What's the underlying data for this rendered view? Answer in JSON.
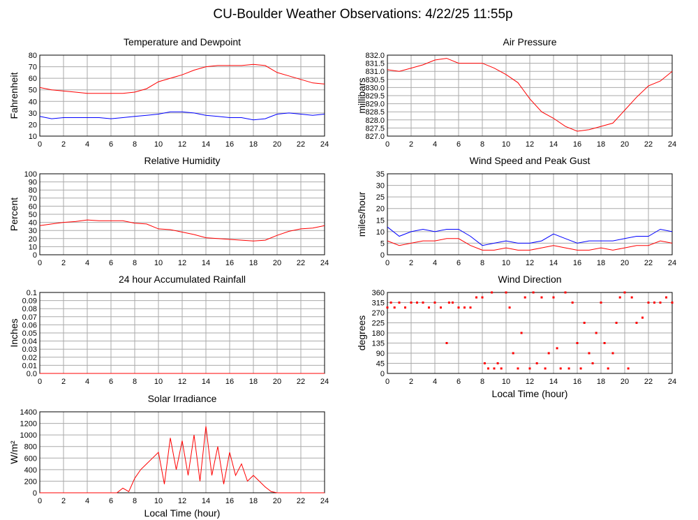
{
  "title": "CU-Boulder Weather Observations: 4/22/25 11:55p",
  "chart_data": [
    {
      "type": "line",
      "title": "Temperature and Dewpoint",
      "ylabel": "Fahrenheit",
      "x": [
        0,
        1,
        2,
        3,
        4,
        5,
        6,
        7,
        8,
        9,
        10,
        11,
        12,
        13,
        14,
        15,
        16,
        17,
        18,
        19,
        20,
        21,
        22,
        23,
        24
      ],
      "series": [
        {
          "color": "#ff0000",
          "values": [
            52,
            50,
            49,
            48,
            47,
            47,
            47,
            47,
            48,
            51,
            57,
            60,
            63,
            67,
            70,
            71,
            71,
            71,
            72,
            71,
            65,
            62,
            59,
            56,
            55
          ]
        },
        {
          "color": "#0000ff",
          "values": [
            27,
            25,
            26,
            26,
            26,
            26,
            25,
            26,
            27,
            28,
            29,
            31,
            31,
            30,
            28,
            27,
            26,
            26,
            24,
            25,
            29,
            30,
            29,
            28,
            29
          ]
        }
      ],
      "xlim": [
        0,
        24
      ],
      "xticks": [
        0,
        2,
        4,
        6,
        8,
        10,
        12,
        14,
        16,
        18,
        20,
        22,
        24
      ],
      "ylim": [
        10,
        80
      ],
      "yticks": [
        10,
        20,
        30,
        40,
        50,
        60,
        70,
        80
      ],
      "grid": true
    },
    {
      "type": "line",
      "title": "Air Pressure",
      "ylabel": "millibars",
      "x": [
        0,
        1,
        2,
        3,
        4,
        5,
        6,
        7,
        8,
        9,
        10,
        11,
        12,
        13,
        14,
        15,
        16,
        17,
        18,
        19,
        20,
        21,
        22,
        23,
        24
      ],
      "series": [
        {
          "color": "#ff0000",
          "values": [
            831.1,
            831.0,
            831.2,
            831.4,
            831.7,
            831.8,
            831.5,
            831.5,
            831.5,
            831.2,
            830.8,
            830.3,
            829.3,
            828.5,
            828.1,
            827.6,
            827.3,
            827.4,
            827.6,
            827.8,
            828.6,
            829.4,
            830.1,
            830.4,
            831.0
          ]
        }
      ],
      "xlim": [
        0,
        24
      ],
      "xticks": [
        0,
        2,
        4,
        6,
        8,
        10,
        12,
        14,
        16,
        18,
        20,
        22,
        24
      ],
      "ylim": [
        827,
        832
      ],
      "yticks": [
        {
          "value": 827,
          "label": "827.0"
        },
        827.5,
        {
          "value": 828,
          "label": "828.0"
        },
        828.5,
        {
          "value": 829,
          "label": "829.0"
        },
        829.5,
        {
          "value": 830,
          "label": "830.0"
        },
        830.5,
        {
          "value": 831,
          "label": "831.0"
        },
        831.5,
        {
          "value": 832,
          "label": "832.0"
        }
      ],
      "grid": true
    },
    {
      "type": "line",
      "title": "Relative Humidity",
      "ylabel": "Percent",
      "x": [
        0,
        1,
        2,
        3,
        4,
        5,
        6,
        7,
        8,
        9,
        10,
        11,
        12,
        13,
        14,
        15,
        16,
        17,
        18,
        19,
        20,
        21,
        22,
        23,
        24
      ],
      "series": [
        {
          "color": "#ff0000",
          "values": [
            36,
            38,
            40,
            41,
            43,
            42,
            42,
            42,
            39,
            38,
            32,
            31,
            28,
            25,
            21,
            20,
            19,
            18,
            17,
            18,
            24,
            29,
            32,
            33,
            36
          ]
        }
      ],
      "xlim": [
        0,
        24
      ],
      "xticks": [
        0,
        2,
        4,
        6,
        8,
        10,
        12,
        14,
        16,
        18,
        20,
        22,
        24
      ],
      "ylim": [
        0,
        100
      ],
      "yticks": [
        0,
        10,
        20,
        30,
        40,
        50,
        60,
        70,
        80,
        90,
        100
      ],
      "grid": true
    },
    {
      "type": "line",
      "title": "Wind Speed and Peak Gust",
      "ylabel": "miles/hour",
      "x": [
        0,
        1,
        2,
        3,
        4,
        5,
        6,
        7,
        8,
        9,
        10,
        11,
        12,
        13,
        14,
        15,
        16,
        17,
        18,
        19,
        20,
        21,
        22,
        23,
        24
      ],
      "series": [
        {
          "color": "#0000ff",
          "values": [
            12,
            8,
            10,
            11,
            10,
            11,
            11,
            8,
            4,
            5,
            6,
            5,
            5,
            6,
            9,
            7,
            5,
            6,
            6,
            6,
            7,
            8,
            8,
            11,
            10
          ]
        },
        {
          "color": "#ff0000",
          "values": [
            6,
            4,
            5,
            6,
            6,
            7,
            7,
            4,
            2,
            2,
            3,
            2,
            2,
            3,
            4,
            3,
            2,
            2,
            3,
            2,
            3,
            4,
            4,
            6,
            5
          ]
        }
      ],
      "xlim": [
        0,
        24
      ],
      "xticks": [
        0,
        2,
        4,
        6,
        8,
        10,
        12,
        14,
        16,
        18,
        20,
        22,
        24
      ],
      "ylim": [
        0,
        35
      ],
      "yticks": [
        0,
        5,
        10,
        15,
        20,
        25,
        30,
        35
      ],
      "grid": true
    },
    {
      "type": "line",
      "title": "24 hour Accumulated Rainfall",
      "ylabel": "Inches",
      "x": [
        0,
        24
      ],
      "series": [
        {
          "color": "#ff0000",
          "values": [
            0,
            0
          ]
        }
      ],
      "xlim": [
        0,
        24
      ],
      "xticks": [
        0,
        2,
        4,
        6,
        8,
        10,
        12,
        14,
        16,
        18,
        20,
        22,
        24
      ],
      "ylim": [
        0,
        0.1
      ],
      "yticks": [
        {
          "value": 0,
          "label": "0.0"
        },
        0.01,
        0.02,
        0.03,
        0.04,
        0.05,
        0.06,
        0.07,
        0.08,
        0.09,
        0.1
      ],
      "grid": true
    },
    {
      "type": "scatter",
      "title": "Wind Direction",
      "ylabel": "degrees",
      "xlabel": "Local Time (hour)",
      "x": [
        0,
        0.3,
        0.6,
        1,
        1.5,
        2,
        2.5,
        3,
        3.5,
        4,
        4.5,
        5,
        5.2,
        5.5,
        6,
        6.5,
        7,
        7.5,
        8,
        8.2,
        8.5,
        8.8,
        9,
        9.3,
        9.6,
        10,
        10.3,
        10.6,
        11,
        11.3,
        11.6,
        12,
        12.3,
        12.6,
        13,
        13.3,
        13.6,
        14,
        14.3,
        14.6,
        15,
        15.3,
        15.6,
        16,
        16.3,
        16.6,
        17,
        17.3,
        17.6,
        18,
        18.3,
        18.6,
        19,
        19.3,
        19.6,
        20,
        20.3,
        20.6,
        21,
        21.5,
        22,
        22.5,
        23,
        23.5,
        24
      ],
      "series": [
        {
          "color": "#ff0000",
          "values": [
            293,
            315,
            293,
            315,
            293,
            315,
            315,
            315,
            293,
            315,
            293,
            135,
            315,
            315,
            293,
            293,
            293,
            338,
            338,
            45,
            22,
            360,
            22,
            45,
            22,
            360,
            293,
            90,
            22,
            180,
            338,
            22,
            360,
            45,
            338,
            22,
            90,
            338,
            112,
            22,
            360,
            22,
            315,
            135,
            22,
            225,
            90,
            45,
            180,
            315,
            135,
            22,
            90,
            225,
            338,
            360,
            22,
            338,
            225,
            248,
            315,
            315,
            315,
            338,
            315
          ]
        }
      ],
      "xlim": [
        0,
        24
      ],
      "xticks": [
        0,
        2,
        4,
        6,
        8,
        10,
        12,
        14,
        16,
        18,
        20,
        22,
        24
      ],
      "ylim": [
        0,
        360
      ],
      "yticks": [
        0,
        45,
        90,
        135,
        180,
        225,
        270,
        315,
        360
      ],
      "grid": true
    },
    {
      "type": "line",
      "title": "Solar Irradiance",
      "ylabel": "W/m²",
      "xlabel": "Local Time (hour)",
      "x": [
        0,
        0.5,
        1,
        1.5,
        2,
        2.5,
        3,
        3.5,
        4,
        4.5,
        5,
        5.5,
        6,
        6.5,
        7,
        7.5,
        8,
        8.5,
        9,
        9.5,
        10,
        10.5,
        11,
        11.5,
        12,
        12.5,
        13,
        13.5,
        14,
        14.5,
        15,
        15.5,
        16,
        16.5,
        17,
        17.5,
        18,
        18.5,
        19,
        19.5,
        20,
        20.5,
        21,
        21.5,
        22,
        22.5,
        23,
        23.5,
        24
      ],
      "series": [
        {
          "color": "#ff0000",
          "values": [
            0,
            0,
            0,
            0,
            0,
            0,
            0,
            0,
            0,
            0,
            0,
            0,
            0,
            0,
            80,
            20,
            250,
            400,
            500,
            600,
            700,
            150,
            950,
            400,
            900,
            300,
            1000,
            200,
            1150,
            300,
            800,
            150,
            700,
            300,
            500,
            200,
            300,
            200,
            100,
            20,
            0,
            0,
            0,
            0,
            0,
            0,
            0,
            0,
            0
          ]
        }
      ],
      "xlim": [
        0,
        24
      ],
      "xticks": [
        0,
        2,
        4,
        6,
        8,
        10,
        12,
        14,
        16,
        18,
        20,
        22,
        24
      ],
      "ylim": [
        0,
        1400
      ],
      "yticks": [
        0,
        200,
        400,
        600,
        800,
        1000,
        1200,
        1400
      ],
      "grid": true
    }
  ]
}
